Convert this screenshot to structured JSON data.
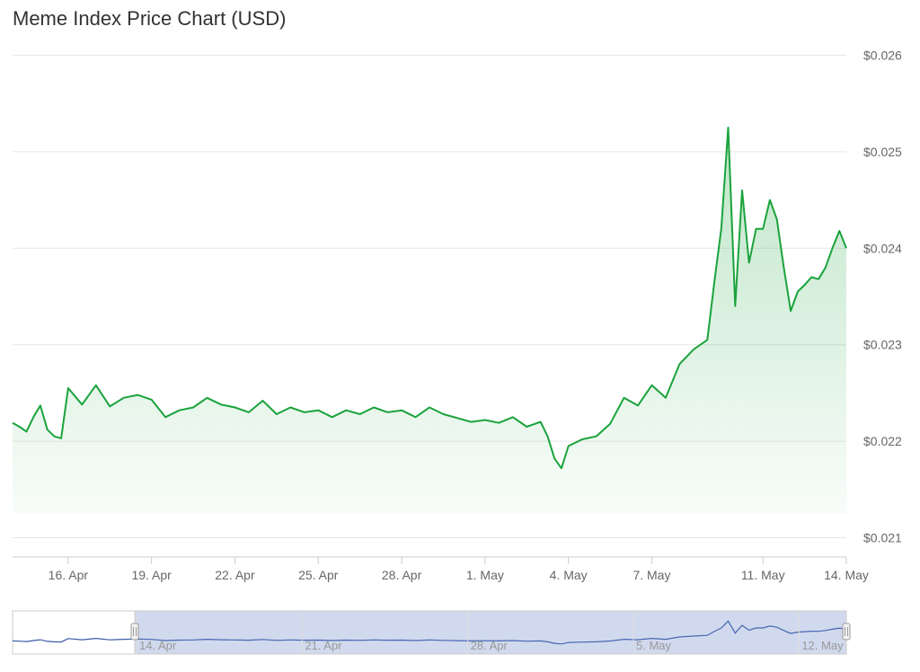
{
  "chart_data": {
    "type": "area",
    "title": "Meme Index Price Chart (USD)",
    "xlabel": "",
    "ylabel": "",
    "ylim": [
      0.0208,
      0.0262
    ],
    "xlim": [
      "2024-04-14",
      "2024-05-14"
    ],
    "y_ticks": [
      "$0.026",
      "$0.025",
      "$0.024",
      "$0.023",
      "$0.022",
      "$0.021"
    ],
    "y_tick_values": [
      0.026,
      0.025,
      0.024,
      0.023,
      0.022,
      0.021
    ],
    "x_ticks": [
      "16. Apr",
      "19. Apr",
      "22. Apr",
      "25. Apr",
      "28. Apr",
      "1. May",
      "4. May",
      "7. May",
      "11. May",
      "14. May"
    ],
    "x_tick_dates": [
      "2024-04-16",
      "2024-04-19",
      "2024-04-22",
      "2024-04-25",
      "2024-04-28",
      "2024-05-01",
      "2024-05-04",
      "2024-05-07",
      "2024-05-11",
      "2024-05-14"
    ],
    "navigator_ticks": [
      "14. Apr",
      "21. Apr",
      "28. Apr",
      "5. May",
      "12. May"
    ],
    "navigator_tick_dates": [
      "2024-04-14",
      "2024-04-21",
      "2024-04-28",
      "2024-05-05",
      "2024-05-12"
    ],
    "navigator_range": [
      "2024-04-14",
      "2024-05-14"
    ],
    "grid": true,
    "legend": "none",
    "series": [
      {
        "color": "#1aa33c",
        "x": [
          "2024-04-14 00:00",
          "2024-04-14 06:00",
          "2024-04-14 12:00",
          "2024-04-14 18:00",
          "2024-04-15 00:00",
          "2024-04-15 06:00",
          "2024-04-15 12:00",
          "2024-04-15 18:00",
          "2024-04-16 00:00",
          "2024-04-16 12:00",
          "2024-04-17 00:00",
          "2024-04-17 12:00",
          "2024-04-18 00:00",
          "2024-04-18 12:00",
          "2024-04-19 00:00",
          "2024-04-19 12:00",
          "2024-04-20 00:00",
          "2024-04-20 12:00",
          "2024-04-21 00:00",
          "2024-04-21 12:00",
          "2024-04-22 00:00",
          "2024-04-22 12:00",
          "2024-04-23 00:00",
          "2024-04-23 12:00",
          "2024-04-24 00:00",
          "2024-04-24 12:00",
          "2024-04-25 00:00",
          "2024-04-25 12:00",
          "2024-04-26 00:00",
          "2024-04-26 12:00",
          "2024-04-27 00:00",
          "2024-04-27 12:00",
          "2024-04-28 00:00",
          "2024-04-28 12:00",
          "2024-04-29 00:00",
          "2024-04-29 12:00",
          "2024-04-30 00:00",
          "2024-04-30 12:00",
          "2024-05-01 00:00",
          "2024-05-01 12:00",
          "2024-05-02 00:00",
          "2024-05-02 12:00",
          "2024-05-03 00:00",
          "2024-05-03 06:00",
          "2024-05-03 12:00",
          "2024-05-03 18:00",
          "2024-05-04 00:00",
          "2024-05-04 12:00",
          "2024-05-05 00:00",
          "2024-05-05 12:00",
          "2024-05-06 00:00",
          "2024-05-06 12:00",
          "2024-05-07 00:00",
          "2024-05-07 12:00",
          "2024-05-08 00:00",
          "2024-05-08 12:00",
          "2024-05-09 00:00",
          "2024-05-09 06:00",
          "2024-05-09 12:00",
          "2024-05-09 18:00",
          "2024-05-10 00:00",
          "2024-05-10 06:00",
          "2024-05-10 12:00",
          "2024-05-10 18:00",
          "2024-05-11 00:00",
          "2024-05-11 06:00",
          "2024-05-11 12:00",
          "2024-05-11 18:00",
          "2024-05-12 00:00",
          "2024-05-12 06:00",
          "2024-05-12 12:00",
          "2024-05-12 18:00",
          "2024-05-13 00:00",
          "2024-05-13 06:00",
          "2024-05-13 12:00",
          "2024-05-13 18:00",
          "2024-05-14 00:00"
        ],
        "values": [
          0.02219,
          0.02215,
          0.0221,
          0.02225,
          0.02237,
          0.02212,
          0.02205,
          0.02203,
          0.02255,
          0.02238,
          0.02258,
          0.02236,
          0.02245,
          0.02248,
          0.02243,
          0.02225,
          0.02232,
          0.02235,
          0.02245,
          0.02238,
          0.02235,
          0.0223,
          0.02242,
          0.02228,
          0.02235,
          0.0223,
          0.02232,
          0.02225,
          0.02232,
          0.02228,
          0.02235,
          0.0223,
          0.02232,
          0.02225,
          0.02235,
          0.02228,
          0.02224,
          0.0222,
          0.02222,
          0.02219,
          0.02225,
          0.02215,
          0.0222,
          0.02205,
          0.02182,
          0.02172,
          0.02195,
          0.02202,
          0.02205,
          0.02218,
          0.02245,
          0.02237,
          0.02258,
          0.02245,
          0.0228,
          0.02295,
          0.02305,
          0.02365,
          0.0242,
          0.02525,
          0.0234,
          0.0246,
          0.02385,
          0.0242,
          0.0242,
          0.0245,
          0.0243,
          0.0238,
          0.02335,
          0.02355,
          0.02362,
          0.0237,
          0.02368,
          0.0238,
          0.024,
          0.02418,
          0.024
        ]
      }
    ]
  }
}
